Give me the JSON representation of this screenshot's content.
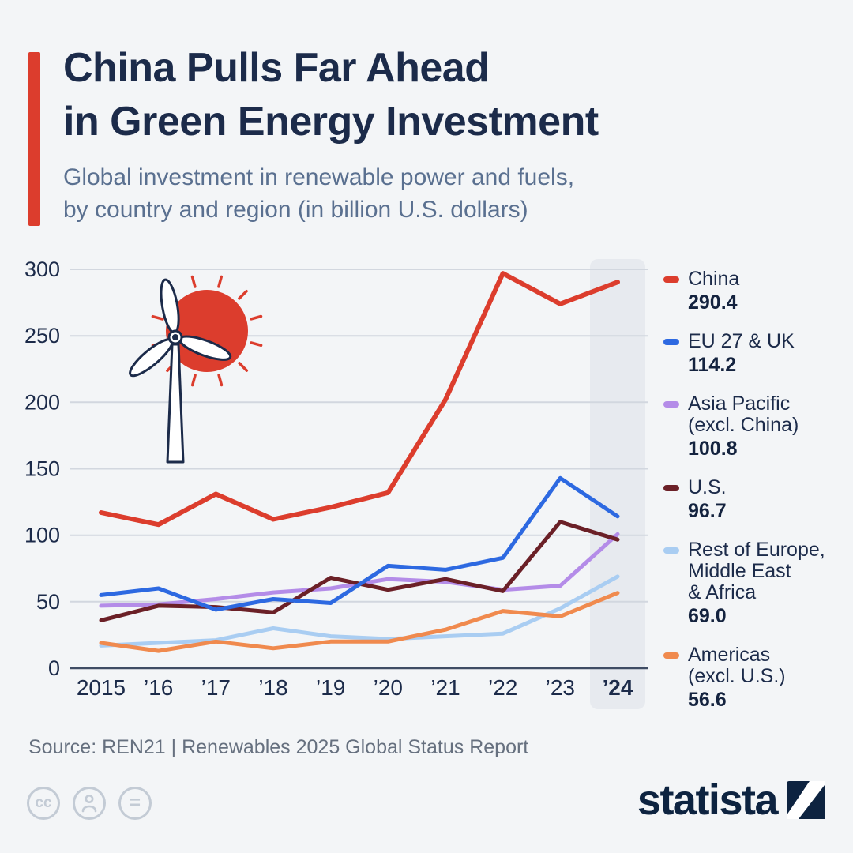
{
  "colors": {
    "accent_red": "#dc3d2d",
    "title_navy": "#1c2b4a",
    "subtitle_gray": "#5a7090",
    "background": "#f3f5f7",
    "gridline": "#d2d7df",
    "axis_line": "#3f4c64",
    "highlight_band": "#e7eaef"
  },
  "header": {
    "title_line1": "China Pulls Far Ahead",
    "title_line2": "in Green Energy Investment",
    "subtitle_line1": "Global investment in renewable power and fuels,",
    "subtitle_line2": "by country and region (in billion U.S. dollars)"
  },
  "chart_data": {
    "type": "line",
    "title": "Global investment in renewable power and fuels, by country and region (in billion U.S. dollars)",
    "xlabel": "",
    "ylabel": "",
    "unit": "billion U.S. dollars",
    "x_tick_labels": [
      "2015",
      "’16",
      "’17",
      "’18",
      "’19",
      "’20",
      "’21",
      "’22",
      "’23",
      "’24"
    ],
    "yticks": [
      0,
      50,
      100,
      150,
      200,
      250,
      300
    ],
    "ylim": [
      0,
      300
    ],
    "grid": true,
    "legend_position": "right",
    "highlight_column": "’24",
    "draw_order": [
      4,
      5,
      2,
      3,
      1,
      0
    ],
    "series": [
      {
        "name": "China",
        "color": "#dc3d2d",
        "width": 6,
        "legend_lines": [
          "China"
        ],
        "value_label": "290.4",
        "values": [
          117,
          108,
          131,
          112,
          121,
          132,
          202,
          297,
          274,
          290.4
        ]
      },
      {
        "name": "EU 27 & UK",
        "color": "#2d69e1",
        "width": 5,
        "legend_lines": [
          "EU 27 & UK"
        ],
        "value_label": "114.2",
        "values": [
          55,
          60,
          44,
          52,
          49,
          77,
          74,
          83,
          143,
          114.2
        ]
      },
      {
        "name": "Asia Pacific (excl. China)",
        "color": "#b48ce8",
        "width": 5,
        "legend_lines": [
          "Asia Pacific",
          "(excl. China)"
        ],
        "value_label": "100.8",
        "values": [
          47,
          48,
          52,
          57,
          60,
          67,
          65,
          59,
          62,
          100.8
        ]
      },
      {
        "name": "U.S.",
        "color": "#6b2027",
        "width": 5,
        "legend_lines": [
          "U.S."
        ],
        "value_label": "96.7",
        "values": [
          36,
          47,
          46,
          42,
          68,
          59,
          67,
          58,
          110,
          96.7
        ]
      },
      {
        "name": "Rest of Europe, Middle East & Africa",
        "color": "#a9cdf2",
        "width": 5,
        "legend_lines": [
          "Rest of Europe,",
          "Middle East",
          "& Africa"
        ],
        "value_label": "69.0",
        "values": [
          17,
          19,
          21,
          30,
          24,
          22,
          24,
          26,
          45,
          69.0
        ]
      },
      {
        "name": "Americas (excl. U.S.)",
        "color": "#f08a4e",
        "width": 5,
        "legend_lines": [
          "Americas",
          "(excl. U.S.)"
        ],
        "value_label": "56.6",
        "values": [
          19,
          13,
          20,
          15,
          20,
          20,
          29,
          43,
          39,
          56.6
        ]
      }
    ]
  },
  "footer": {
    "source": "Source: REN21 | Renewables 2025 Global Status Report"
  },
  "branding": {
    "logo_text": "statista",
    "cc_glyph": "cc",
    "equals_glyph": "=",
    "license_icons": [
      "cc",
      "attribution",
      "no-derivatives"
    ]
  }
}
